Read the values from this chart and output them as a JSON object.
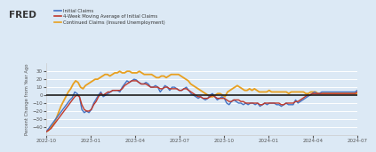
{
  "legend_entries": [
    {
      "label": "Initial Claims",
      "color": "#4473c4",
      "lw": 1.0
    },
    {
      "label": "4-Week Moving Average of Initial Claims",
      "color": "#c0392b",
      "lw": 1.0
    },
    {
      "label": "Continued Claims (Insured Unemployment)",
      "color": "#e8a020",
      "lw": 1.3
    }
  ],
  "ylabel": "Percent Change from Year Ago",
  "ylim": [
    -50,
    40
  ],
  "yticks": [
    -40,
    -30,
    -20,
    -10,
    0,
    10,
    20,
    30
  ],
  "background_color": "#dce9f5",
  "plot_background": "#dce9f5",
  "grid_color": "#ffffff",
  "zero_line_color": "#1a1a1a",
  "x_labels": [
    "2022-10",
    "2023-01",
    "2023-04",
    "2023-07",
    "2023-10",
    "2024-01",
    "2024-04",
    "2024-07"
  ],
  "initial_claims": [
    -46,
    -42,
    -38,
    -34,
    -30,
    -26,
    -22,
    -18,
    -14,
    -10,
    -6,
    -3,
    4,
    2,
    -2,
    -18,
    -22,
    -20,
    -22,
    -18,
    -10,
    -5,
    0,
    4,
    -2,
    0,
    2,
    4,
    6,
    6,
    6,
    4,
    10,
    14,
    18,
    16,
    18,
    20,
    19,
    16,
    14,
    14,
    16,
    14,
    10,
    10,
    12,
    10,
    4,
    8,
    12,
    10,
    6,
    10,
    10,
    8,
    6,
    6,
    8,
    10,
    6,
    2,
    0,
    -2,
    -4,
    -2,
    -4,
    -6,
    -4,
    0,
    2,
    -2,
    -6,
    -4,
    -2,
    -4,
    -10,
    -12,
    -8,
    -6,
    -8,
    -10,
    -10,
    -12,
    -10,
    -12,
    -10,
    -10,
    -12,
    -10,
    -14,
    -12,
    -10,
    -12,
    -10,
    -10,
    -10,
    -12,
    -12,
    -14,
    -12,
    -10,
    -12,
    -12,
    -12,
    -6,
    -10,
    -8,
    -6,
    -4,
    -2,
    0,
    2,
    4,
    2,
    2,
    4,
    4,
    4,
    4,
    4,
    4,
    4,
    4,
    4,
    4,
    4,
    4,
    4,
    4,
    4,
    6
  ],
  "moving_avg": [
    -46,
    -44,
    -42,
    -38,
    -34,
    -30,
    -26,
    -22,
    -18,
    -14,
    -10,
    -6,
    -2,
    0,
    -2,
    -12,
    -18,
    -20,
    -20,
    -18,
    -12,
    -8,
    -2,
    2,
    0,
    2,
    4,
    4,
    6,
    6,
    6,
    6,
    8,
    12,
    14,
    16,
    18,
    18,
    18,
    16,
    14,
    14,
    14,
    12,
    10,
    10,
    10,
    10,
    8,
    8,
    10,
    10,
    8,
    8,
    8,
    8,
    6,
    6,
    8,
    8,
    6,
    4,
    2,
    0,
    -2,
    -2,
    -4,
    -4,
    -4,
    -2,
    0,
    -2,
    -4,
    -4,
    -4,
    -4,
    -6,
    -8,
    -8,
    -6,
    -6,
    -6,
    -8,
    -8,
    -10,
    -10,
    -10,
    -10,
    -10,
    -10,
    -12,
    -12,
    -10,
    -10,
    -10,
    -10,
    -10,
    -10,
    -10,
    -12,
    -12,
    -10,
    -10,
    -10,
    -10,
    -8,
    -8,
    -6,
    -4,
    -2,
    0,
    0,
    2,
    2,
    2,
    2,
    2,
    2,
    2,
    2,
    2,
    2,
    2,
    2,
    2,
    2,
    2,
    2,
    2,
    2,
    2,
    4
  ],
  "continued_claims": [
    -46,
    -44,
    -40,
    -36,
    -30,
    -22,
    -14,
    -8,
    -2,
    4,
    8,
    14,
    18,
    16,
    10,
    8,
    12,
    14,
    16,
    18,
    20,
    20,
    22,
    24,
    26,
    26,
    24,
    26,
    28,
    28,
    30,
    28,
    28,
    30,
    30,
    28,
    28,
    28,
    30,
    28,
    26,
    26,
    26,
    26,
    24,
    22,
    22,
    24,
    24,
    22,
    24,
    26,
    26,
    26,
    26,
    24,
    22,
    20,
    18,
    14,
    12,
    10,
    8,
    6,
    4,
    2,
    0,
    -2,
    -2,
    0,
    2,
    2,
    0,
    -2,
    4,
    6,
    8,
    10,
    12,
    10,
    8,
    6,
    6,
    8,
    6,
    8,
    6,
    4,
    4,
    4,
    4,
    6,
    4,
    4,
    4,
    4,
    4,
    4,
    4,
    2,
    4,
    4,
    4,
    4,
    4,
    4,
    2,
    2,
    4,
    4,
    4,
    2,
    2,
    2,
    2,
    2,
    2,
    2,
    2,
    2,
    2,
    2,
    2,
    2,
    2,
    2,
    2,
    2
  ]
}
